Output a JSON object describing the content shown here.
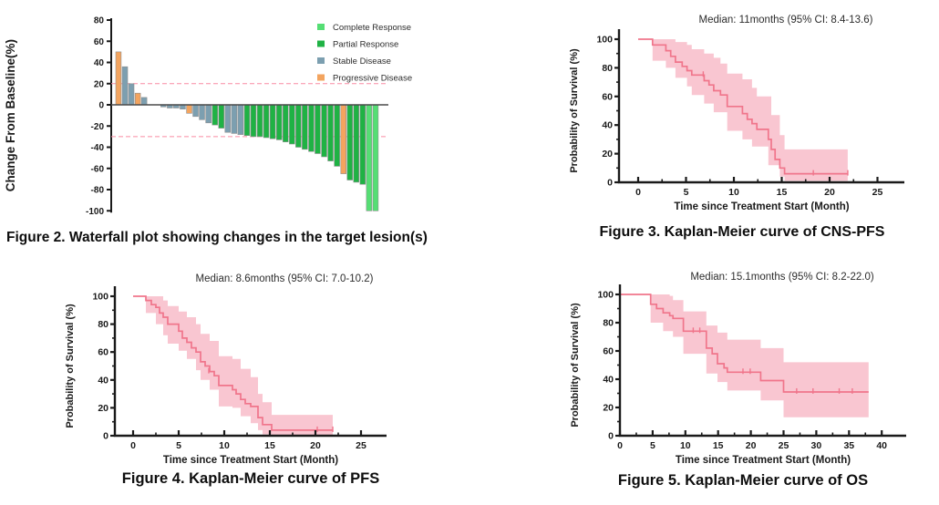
{
  "colors": {
    "complete_response": "#55DE74",
    "partial_response": "#1FB244",
    "stable_disease": "#7C9FB0",
    "progressive_disease": "#F3A45F",
    "km_line": "#F0758B",
    "km_band": "#F9C6D1",
    "reference_dashed": "#FA8CA3",
    "axis": "#1a1a1a"
  },
  "chart_data": [
    {
      "type": "bar",
      "subtype": "waterfall",
      "caption": "Figure 2. Waterfall plot showing changes in the target lesion(s)",
      "ylabel": "Change From Baseline(%)",
      "ylim": [
        -100,
        80
      ],
      "yticks": [
        80,
        60,
        40,
        20,
        0,
        -20,
        -40,
        -60,
        -80,
        -100
      ],
      "reference_lines": [
        20,
        -30
      ],
      "legend_position": "top-right",
      "legend": [
        {
          "key": "CR",
          "label": "Complete Response"
        },
        {
          "key": "PR",
          "label": "Partial Response"
        },
        {
          "key": "SD",
          "label": "Stable Disease"
        },
        {
          "key": "PD",
          "label": "Progressive Disease"
        }
      ],
      "bars": [
        {
          "v": 50,
          "r": "PD"
        },
        {
          "v": 36,
          "r": "SD"
        },
        {
          "v": 20,
          "r": "SD"
        },
        {
          "v": 11,
          "r": "PD"
        },
        {
          "v": 7,
          "r": "SD"
        },
        {
          "v": 0,
          "r": ""
        },
        {
          "v": 0,
          "r": ""
        },
        {
          "v": -2,
          "r": "SD"
        },
        {
          "v": -3,
          "r": "SD"
        },
        {
          "v": -3,
          "r": "SD"
        },
        {
          "v": -4,
          "r": "SD"
        },
        {
          "v": -8,
          "r": "PD"
        },
        {
          "v": -11,
          "r": "SD"
        },
        {
          "v": -14,
          "r": "SD"
        },
        {
          "v": -17,
          "r": "SD"
        },
        {
          "v": -19,
          "r": "PR"
        },
        {
          "v": -22,
          "r": "PR"
        },
        {
          "v": -26,
          "r": "SD"
        },
        {
          "v": -27,
          "r": "SD"
        },
        {
          "v": -28,
          "r": "SD"
        },
        {
          "v": -29,
          "r": "PR"
        },
        {
          "v": -30,
          "r": "PR"
        },
        {
          "v": -30,
          "r": "PR"
        },
        {
          "v": -31,
          "r": "PR"
        },
        {
          "v": -32,
          "r": "PR"
        },
        {
          "v": -33,
          "r": "PR"
        },
        {
          "v": -35,
          "r": "PR"
        },
        {
          "v": -37,
          "r": "PR"
        },
        {
          "v": -40,
          "r": "PR"
        },
        {
          "v": -42,
          "r": "PR"
        },
        {
          "v": -44,
          "r": "PR"
        },
        {
          "v": -46,
          "r": "PR"
        },
        {
          "v": -49,
          "r": "PR"
        },
        {
          "v": -53,
          "r": "PR"
        },
        {
          "v": -58,
          "r": "PR"
        },
        {
          "v": -65,
          "r": "PD"
        },
        {
          "v": -71,
          "r": "PR"
        },
        {
          "v": -73,
          "r": "PR"
        },
        {
          "v": -75,
          "r": "PR"
        },
        {
          "v": -100,
          "r": "CR"
        },
        {
          "v": -100,
          "r": "CR"
        }
      ]
    },
    {
      "type": "line",
      "subtype": "kaplan-meier",
      "caption": "Figure 3. Kaplan-Meier curve of CNS-PFS",
      "annotation": "Median: 11months (95% CI: 8.4-13.6)",
      "xlabel": "Time since Treatment Start (Month)",
      "ylabel": "Probability of Survival (%)",
      "xlim": [
        -2,
        27.5
      ],
      "xticks": [
        0,
        5,
        10,
        15,
        20,
        25
      ],
      "x_minor_step": 2.5,
      "ylim": [
        0,
        100
      ],
      "yticks": [
        0,
        20,
        40,
        60,
        80,
        100
      ],
      "y_minor_step": 10,
      "steps": [
        [
          0,
          100
        ],
        [
          1.5,
          96
        ],
        [
          2.9,
          92
        ],
        [
          3.4,
          88
        ],
        [
          3.9,
          84
        ],
        [
          4.6,
          81
        ],
        [
          5.1,
          78
        ],
        [
          5.6,
          75
        ],
        [
          6.9,
          71
        ],
        [
          7.4,
          68
        ],
        [
          7.9,
          64
        ],
        [
          8.6,
          61
        ],
        [
          9.3,
          53
        ],
        [
          10.9,
          48
        ],
        [
          11.4,
          44
        ],
        [
          11.9,
          41
        ],
        [
          12.4,
          37
        ],
        [
          13.6,
          30
        ],
        [
          13.9,
          23
        ],
        [
          14.3,
          16
        ],
        [
          14.8,
          10
        ],
        [
          15.3,
          6
        ],
        [
          21.9,
          6
        ]
      ],
      "band_upper": [
        [
          0,
          100
        ],
        [
          3,
          100
        ],
        [
          3.9,
          98
        ],
        [
          5.1,
          96
        ],
        [
          5.6,
          93
        ],
        [
          6.9,
          90
        ],
        [
          7.9,
          87
        ],
        [
          8.6,
          83
        ],
        [
          9.3,
          76
        ],
        [
          10.9,
          72
        ],
        [
          11.9,
          66
        ],
        [
          12.4,
          60
        ],
        [
          13.9,
          47
        ],
        [
          14.8,
          33
        ],
        [
          15.3,
          23
        ],
        [
          21.9,
          23
        ]
      ],
      "band_lower": [
        [
          0,
          100
        ],
        [
          1.5,
          85
        ],
        [
          2.9,
          80
        ],
        [
          3.9,
          73
        ],
        [
          5.1,
          67
        ],
        [
          5.6,
          61
        ],
        [
          6.9,
          55
        ],
        [
          7.9,
          49
        ],
        [
          9.3,
          36
        ],
        [
          10.9,
          30
        ],
        [
          11.9,
          25
        ],
        [
          13.6,
          12
        ],
        [
          14.8,
          4
        ],
        [
          15.3,
          1
        ],
        [
          21.9,
          1
        ]
      ],
      "censor": [
        [
          6.8,
          75
        ],
        [
          18.3,
          6
        ],
        [
          21.9,
          6
        ]
      ]
    },
    {
      "type": "line",
      "subtype": "kaplan-meier",
      "caption": "Figure 4. Kaplan-Meier curve of PFS",
      "annotation": "Median: 8.6months (95% CI: 7.0-10.2)",
      "xlabel": "Time since Treatment Start (Month)",
      "ylabel": "Probability of Survival (%)",
      "xlim": [
        -2,
        27.5
      ],
      "xticks": [
        0,
        5,
        10,
        15,
        20,
        25
      ],
      "x_minor_step": 2.5,
      "ylim": [
        0,
        100
      ],
      "yticks": [
        0,
        20,
        40,
        60,
        80,
        100
      ],
      "y_minor_step": 10,
      "steps": [
        [
          0,
          100
        ],
        [
          1.4,
          97
        ],
        [
          2,
          94
        ],
        [
          2.5,
          92
        ],
        [
          2.9,
          88
        ],
        [
          3.3,
          85
        ],
        [
          3.8,
          80
        ],
        [
          5,
          75
        ],
        [
          5.4,
          70
        ],
        [
          5.9,
          67
        ],
        [
          6.4,
          63
        ],
        [
          6.9,
          60
        ],
        [
          7.4,
          53
        ],
        [
          7.9,
          50
        ],
        [
          8.4,
          46
        ],
        [
          8.9,
          43
        ],
        [
          9.4,
          36
        ],
        [
          10.9,
          33
        ],
        [
          11.3,
          30
        ],
        [
          11.8,
          26
        ],
        [
          12.3,
          23
        ],
        [
          12.9,
          21
        ],
        [
          13.7,
          13
        ],
        [
          14.2,
          8
        ],
        [
          15.2,
          4
        ],
        [
          21.9,
          4
        ]
      ],
      "band_upper": [
        [
          0,
          100
        ],
        [
          2.5,
          100
        ],
        [
          3.3,
          97
        ],
        [
          3.8,
          93
        ],
        [
          5,
          89
        ],
        [
          5.9,
          85
        ],
        [
          6.9,
          80
        ],
        [
          7.4,
          73
        ],
        [
          8.4,
          68
        ],
        [
          9.4,
          57
        ],
        [
          10.9,
          55
        ],
        [
          11.8,
          48
        ],
        [
          12.9,
          42
        ],
        [
          13.7,
          30
        ],
        [
          14.2,
          24
        ],
        [
          15.2,
          15
        ],
        [
          21.9,
          15
        ]
      ],
      "band_lower": [
        [
          0,
          100
        ],
        [
          1.4,
          88
        ],
        [
          2.5,
          80
        ],
        [
          3.3,
          72
        ],
        [
          3.8,
          66
        ],
        [
          5,
          61
        ],
        [
          5.9,
          55
        ],
        [
          6.9,
          47
        ],
        [
          7.4,
          40
        ],
        [
          8.4,
          33
        ],
        [
          9.4,
          21
        ],
        [
          10.9,
          20
        ],
        [
          11.8,
          14
        ],
        [
          12.9,
          9
        ],
        [
          13.7,
          4
        ],
        [
          14.2,
          1
        ],
        [
          15.2,
          0
        ],
        [
          21.9,
          0
        ]
      ],
      "censor": [
        [
          8.3,
          46
        ],
        [
          20.2,
          4
        ],
        [
          21.9,
          4
        ]
      ]
    },
    {
      "type": "line",
      "subtype": "kaplan-meier",
      "caption": "Figure 5. Kaplan-Meier curve of OS",
      "annotation": "Median: 15.1months (95% CI: 8.2-22.0)",
      "xlabel": "Time since Treatment Start (Month)",
      "ylabel": "Probability of Survival (%)",
      "xlim": [
        0,
        43
      ],
      "xticks": [
        0,
        5,
        10,
        15,
        20,
        25,
        30,
        35,
        40
      ],
      "x_minor_step": 2.5,
      "ylim": [
        0,
        100
      ],
      "yticks": [
        0,
        20,
        40,
        60,
        80,
        100
      ],
      "y_minor_step": 10,
      "steps": [
        [
          0,
          100
        ],
        [
          4.7,
          93
        ],
        [
          5.6,
          90
        ],
        [
          6.6,
          87
        ],
        [
          7.6,
          85
        ],
        [
          8.1,
          83
        ],
        [
          9.7,
          74
        ],
        [
          13.2,
          62
        ],
        [
          14.1,
          58
        ],
        [
          14.9,
          51
        ],
        [
          15.9,
          48
        ],
        [
          16.4,
          45
        ],
        [
          21.5,
          39
        ],
        [
          25,
          31
        ],
        [
          38,
          31
        ]
      ],
      "band_upper": [
        [
          0,
          100
        ],
        [
          5.6,
          100
        ],
        [
          7.6,
          99
        ],
        [
          8.1,
          96
        ],
        [
          9.7,
          88
        ],
        [
          13.2,
          78
        ],
        [
          14.9,
          73
        ],
        [
          16.4,
          68
        ],
        [
          21.5,
          62
        ],
        [
          25,
          52
        ],
        [
          38,
          52
        ]
      ],
      "band_lower": [
        [
          0,
          100
        ],
        [
          4.7,
          80
        ],
        [
          6.6,
          74
        ],
        [
          8.1,
          70
        ],
        [
          9.7,
          58
        ],
        [
          13.2,
          44
        ],
        [
          14.9,
          38
        ],
        [
          16.4,
          32
        ],
        [
          21.5,
          25
        ],
        [
          25,
          13
        ],
        [
          38,
          13
        ]
      ],
      "censor": [
        [
          11.2,
          74
        ],
        [
          12.2,
          74
        ],
        [
          18.8,
          45
        ],
        [
          19.9,
          45
        ],
        [
          27,
          31
        ],
        [
          29.5,
          31
        ],
        [
          33.5,
          31
        ],
        [
          35.5,
          31
        ]
      ]
    }
  ]
}
